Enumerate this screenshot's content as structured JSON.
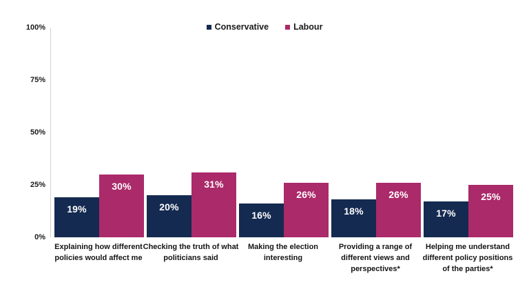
{
  "chart_data": {
    "type": "bar",
    "title": "",
    "categories": [
      "Explaining how different policies would affect me",
      "Checking the truth of what politicians said",
      "Making the election interesting",
      "Providing a range of different views and perspectives*",
      "Helping me understand different policy positions of the parties*"
    ],
    "category_lines": [
      [
        "Explaining how different",
        "policies would affect me"
      ],
      [
        "Checking the truth of what",
        "politicians said"
      ],
      [
        "Making the election",
        "interesting"
      ],
      [
        "Providing a range of",
        "different views and",
        "perspectives*"
      ],
      [
        "Helping me understand",
        "different policy positions",
        "of the parties*"
      ]
    ],
    "series": [
      {
        "name": "Conservative",
        "color": "#142a50",
        "values": [
          19,
          20,
          16,
          18,
          17
        ]
      },
      {
        "name": "Labour",
        "color": "#ab2a69",
        "values": [
          30,
          31,
          26,
          26,
          25
        ]
      }
    ],
    "value_suffix": "%",
    "ylim": [
      0,
      100
    ],
    "yticks": [
      100,
      75,
      50,
      25,
      0
    ],
    "ytick_suffix": "%",
    "legend_position": "top-center",
    "grid": false,
    "bar_label_color": "#ffffff",
    "axis_line_color": "#d2d2d2",
    "text_color": "#1a1a1a"
  }
}
